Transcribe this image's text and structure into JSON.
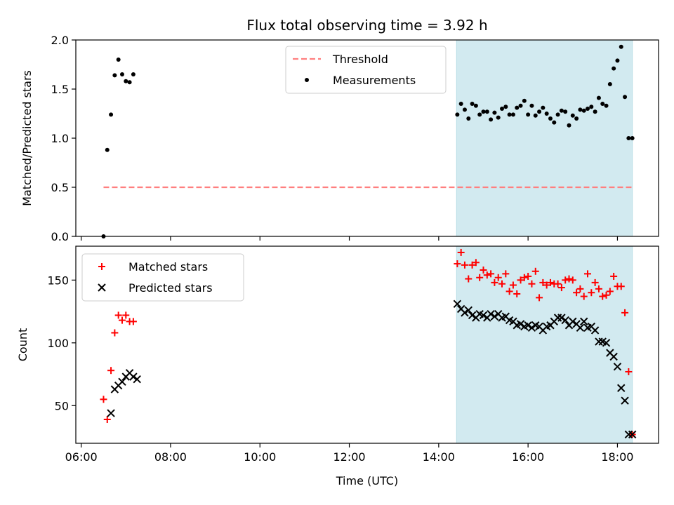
{
  "chart_data": [
    {
      "type": "scatter",
      "title": "Flux total observing time = 3.92 h",
      "xlabel": "",
      "ylabel": "Matched/Predicted stars",
      "ylim": [
        0,
        2.0
      ],
      "yticks": [
        "0.0",
        "0.5",
        "1.0",
        "1.5",
        "2.0"
      ],
      "threshold": 0.5,
      "highlight": {
        "x_start": "14:24",
        "x_end": "18:20",
        "color": "#d2eaf0"
      },
      "legend": {
        "position": "top-center",
        "entries": [
          "Threshold",
          "Measurements"
        ]
      },
      "series": [
        {
          "name": "Threshold",
          "style": "dashed-line",
          "color": "#ff7f7f",
          "x": [
            "06:30",
            "18:20"
          ],
          "values": [
            0.5,
            0.5
          ]
        },
        {
          "name": "Measurements",
          "style": "dot",
          "color": "#000000",
          "x": [
            "06:30",
            "06:35",
            "06:40",
            "06:45",
            "06:50",
            "06:55",
            "07:00",
            "07:05",
            "07:10",
            "14:25",
            "14:30",
            "14:35",
            "14:40",
            "14:45",
            "14:50",
            "14:55",
            "15:00",
            "15:05",
            "15:10",
            "15:15",
            "15:20",
            "15:25",
            "15:30",
            "15:35",
            "15:40",
            "15:45",
            "15:50",
            "15:55",
            "16:00",
            "16:05",
            "16:10",
            "16:15",
            "16:20",
            "16:25",
            "16:30",
            "16:35",
            "16:40",
            "16:45",
            "16:50",
            "16:55",
            "17:00",
            "17:05",
            "17:10",
            "17:15",
            "17:20",
            "17:25",
            "17:30",
            "17:35",
            "17:40",
            "17:45",
            "17:50",
            "17:55",
            "18:00",
            "18:05",
            "18:10",
            "18:15",
            "18:20"
          ],
          "values": [
            0.0,
            0.88,
            1.24,
            1.64,
            1.8,
            1.65,
            1.58,
            1.57,
            1.65,
            1.24,
            1.35,
            1.29,
            1.2,
            1.35,
            1.33,
            1.24,
            1.27,
            1.27,
            1.19,
            1.26,
            1.21,
            1.3,
            1.32,
            1.24,
            1.24,
            1.31,
            1.33,
            1.38,
            1.24,
            1.33,
            1.23,
            1.27,
            1.31,
            1.25,
            1.2,
            1.16,
            1.24,
            1.28,
            1.27,
            1.13,
            1.23,
            1.2,
            1.29,
            1.28,
            1.3,
            1.32,
            1.27,
            1.41,
            1.35,
            1.33,
            1.55,
            1.71,
            1.79,
            1.93,
            1.42,
            1.0,
            1.0
          ]
        }
      ]
    },
    {
      "type": "scatter",
      "title": "",
      "xlabel": "Time (UTC)",
      "ylabel": "Count",
      "ylim": [
        20,
        177
      ],
      "yticks": [
        "50",
        "100",
        "150"
      ],
      "xticks": [
        "06:00",
        "08:00",
        "10:00",
        "12:00",
        "14:00",
        "16:00",
        "18:00"
      ],
      "highlight": {
        "x_start": "14:24",
        "x_end": "18:20",
        "color": "#d2eaf0"
      },
      "legend": {
        "position": "top-left",
        "entries": [
          "Matched stars",
          "Predicted stars"
        ]
      },
      "series": [
        {
          "name": "Matched stars",
          "style": "plus",
          "color": "#ff0000",
          "x": [
            "06:30",
            "06:35",
            "06:40",
            "06:45",
            "06:50",
            "06:55",
            "07:00",
            "07:05",
            "07:10",
            "14:25",
            "14:30",
            "14:35",
            "14:40",
            "14:45",
            "14:50",
            "14:55",
            "15:00",
            "15:05",
            "15:10",
            "15:15",
            "15:20",
            "15:25",
            "15:30",
            "15:35",
            "15:40",
            "15:45",
            "15:50",
            "15:55",
            "16:00",
            "16:05",
            "16:10",
            "16:15",
            "16:20",
            "16:25",
            "16:30",
            "16:35",
            "16:40",
            "16:45",
            "16:50",
            "16:55",
            "17:00",
            "17:05",
            "17:10",
            "17:15",
            "17:20",
            "17:25",
            "17:30",
            "17:35",
            "17:40",
            "17:45",
            "17:50",
            "17:55",
            "18:00",
            "18:05",
            "18:10",
            "18:15",
            "18:20"
          ],
          "values": [
            55,
            39,
            78,
            108,
            122,
            118,
            122,
            117,
            117,
            163,
            172,
            162,
            151,
            162,
            164,
            152,
            158,
            154,
            155,
            148,
            152,
            147,
            155,
            141,
            146,
            139,
            150,
            152,
            153,
            147,
            157,
            136,
            148,
            146,
            148,
            147,
            147,
            144,
            150,
            151,
            150,
            140,
            143,
            137,
            155,
            140,
            148,
            143,
            137,
            138,
            141,
            153,
            145,
            145,
            124,
            77,
            27
          ]
        },
        {
          "name": "Predicted stars",
          "style": "x",
          "color": "#000000",
          "x": [
            "06:40",
            "06:45",
            "06:50",
            "06:55",
            "07:00",
            "07:05",
            "07:10",
            "07:15",
            "14:25",
            "14:30",
            "14:35",
            "14:40",
            "14:45",
            "14:50",
            "14:55",
            "15:00",
            "15:05",
            "15:10",
            "15:15",
            "15:20",
            "15:25",
            "15:30",
            "15:35",
            "15:40",
            "15:45",
            "15:50",
            "15:55",
            "16:00",
            "16:05",
            "16:10",
            "16:15",
            "16:20",
            "16:25",
            "16:30",
            "16:35",
            "16:40",
            "16:45",
            "16:50",
            "16:55",
            "17:00",
            "17:05",
            "17:10",
            "17:15",
            "17:20",
            "17:25",
            "17:30",
            "17:35",
            "17:40",
            "17:45",
            "17:50",
            "17:55",
            "18:00",
            "18:05",
            "18:10",
            "18:15",
            "18:20"
          ],
          "values": [
            44,
            63,
            66,
            69,
            73,
            76,
            73,
            71,
            131,
            127,
            124,
            126,
            122,
            120,
            123,
            122,
            120,
            123,
            121,
            123,
            120,
            121,
            118,
            117,
            114,
            115,
            113,
            114,
            112,
            114,
            113,
            110,
            113,
            114,
            117,
            120,
            120,
            118,
            114,
            117,
            115,
            112,
            117,
            112,
            113,
            110,
            101,
            101,
            100,
            92,
            89,
            81,
            64,
            54,
            27,
            27
          ]
        }
      ]
    }
  ]
}
